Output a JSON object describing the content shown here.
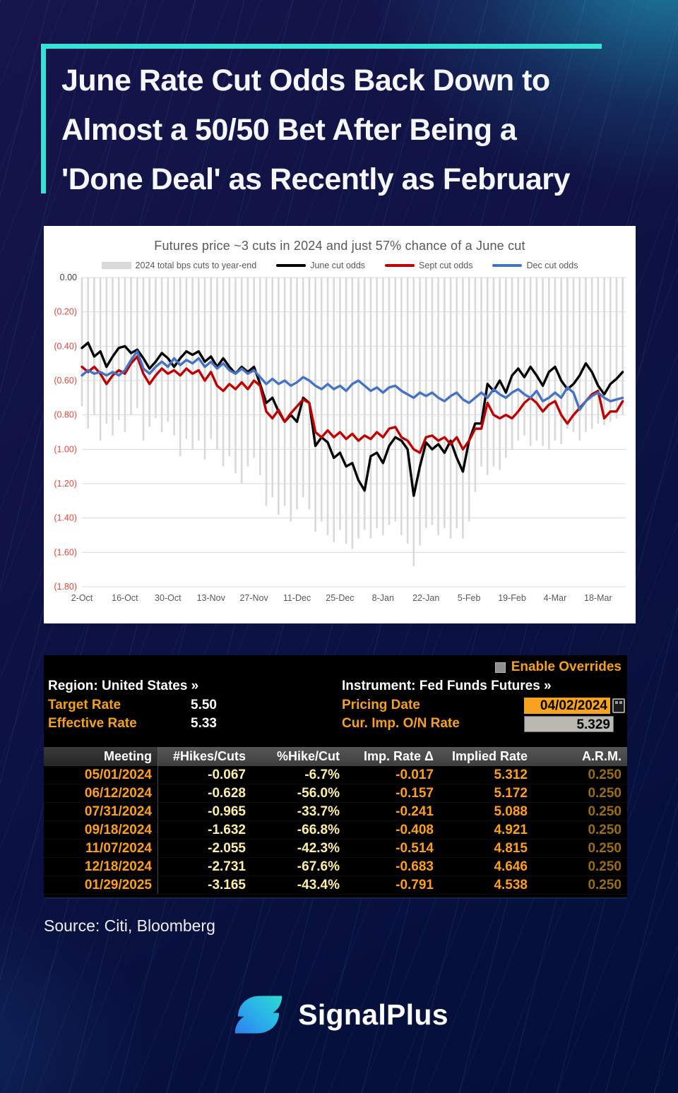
{
  "page": {
    "title_lines": [
      "June Rate Cut Odds Back Down to",
      "Almost a 50/50 Bet After Being a",
      "'Done Deal' as Recently as February"
    ],
    "source": "Source: Citi, Bloomberg",
    "brand": "SignalPlus",
    "accent_teal": "#35e3d4"
  },
  "chart_data": {
    "type": "combo-bar-line",
    "title": "Futures price ~3 cuts in 2024 and just 57% chance of a June cut",
    "xlabel": "",
    "ylabel": "",
    "ylim": [
      -1.8,
      0
    ],
    "grid": "horizontal",
    "legend_position": "top",
    "x_days": [
      0,
      2,
      4,
      6,
      8,
      10,
      12,
      14,
      16,
      18,
      20,
      22,
      24,
      26,
      28,
      30,
      32,
      34,
      36,
      38,
      40,
      42,
      44,
      46,
      48,
      50,
      52,
      54,
      56,
      58,
      60,
      62,
      64,
      66,
      68,
      70,
      72,
      74,
      76,
      78,
      80,
      82,
      84,
      86,
      88,
      90,
      92,
      94,
      96,
      98,
      100,
      102,
      104,
      106,
      108,
      110,
      112,
      114,
      116,
      118,
      120,
      122,
      124,
      126,
      128,
      130,
      132,
      134,
      136,
      138,
      140,
      142,
      144,
      146,
      148,
      150,
      152,
      154,
      156,
      158,
      160,
      162,
      164,
      166,
      168,
      170,
      172,
      174,
      176
    ],
    "x_ticks": {
      "days": [
        0,
        14,
        28,
        42,
        56,
        70,
        84,
        98,
        112,
        126,
        140,
        154,
        168
      ],
      "labels": [
        "2-Oct",
        "16-Oct",
        "30-Oct",
        "13-Nov",
        "27-Nov",
        "11-Dec",
        "25-Dec",
        "8-Jan",
        "22-Jan",
        "5-Feb",
        "19-Feb",
        "4-Mar",
        "18-Mar"
      ]
    },
    "y_ticks": {
      "values": [
        0,
        -0.2,
        -0.4,
        -0.6,
        -0.8,
        -1.0,
        -1.2,
        -1.4,
        -1.6,
        -1.8
      ],
      "labels": [
        "0.00",
        "(0.20)",
        "(0.40)",
        "(0.60)",
        "(0.80)",
        "(1.00)",
        "(1.20)",
        "(1.40)",
        "(1.60)",
        "(1.80)"
      ],
      "negative_color": "#e8443a",
      "zero_color": "#404040"
    },
    "series": [
      {
        "name": "2024 total bps cuts to year-end",
        "type": "bar",
        "color": "#d9d9d9",
        "values": [
          -0.75,
          -0.88,
          -0.8,
          -0.95,
          -0.85,
          -0.92,
          -0.83,
          -0.9,
          -0.8,
          -0.76,
          -0.95,
          -0.87,
          -0.82,
          -0.9,
          -0.84,
          -0.92,
          -1.04,
          -0.94,
          -1.0,
          -0.95,
          -1.06,
          -0.94,
          -1.0,
          -1.1,
          -1.04,
          -1.14,
          -1.2,
          -1.1,
          -1.05,
          -1.15,
          -1.33,
          -1.28,
          -1.38,
          -1.33,
          -1.42,
          -1.35,
          -1.28,
          -1.35,
          -1.48,
          -1.42,
          -1.5,
          -1.54,
          -1.47,
          -1.55,
          -1.58,
          -1.52,
          -1.47,
          -1.52,
          -1.46,
          -1.5,
          -1.44,
          -1.42,
          -1.5,
          -1.55,
          -1.68,
          -1.56,
          -1.46,
          -1.44,
          -1.5,
          -1.46,
          -1.52,
          -1.46,
          -1.52,
          -1.42,
          -1.25,
          -1.1,
          -1.15,
          -1.1,
          -1.12,
          -1.05,
          -1.0,
          -0.95,
          -0.92,
          -0.98,
          -0.95,
          -0.98,
          -1.0,
          -0.95,
          -0.97,
          -0.88,
          -0.9,
          -0.95,
          -0.9,
          -0.88,
          -0.85,
          -0.86,
          -0.84,
          -0.82,
          -0.8
        ]
      },
      {
        "name": "June cut odds",
        "type": "line",
        "color": "#000000",
        "values": [
          -0.41,
          -0.38,
          -0.46,
          -0.43,
          -0.52,
          -0.46,
          -0.41,
          -0.4,
          -0.44,
          -0.42,
          -0.47,
          -0.53,
          -0.49,
          -0.44,
          -0.47,
          -0.52,
          -0.47,
          -0.43,
          -0.45,
          -0.43,
          -0.49,
          -0.46,
          -0.52,
          -0.47,
          -0.52,
          -0.56,
          -0.52,
          -0.55,
          -0.52,
          -0.62,
          -0.73,
          -0.7,
          -0.78,
          -0.84,
          -0.8,
          -0.84,
          -0.7,
          -0.73,
          -0.98,
          -0.93,
          -0.96,
          -1.05,
          -1.02,
          -1.1,
          -1.08,
          -1.18,
          -1.24,
          -1.04,
          -1.02,
          -1.08,
          -0.98,
          -0.93,
          -0.95,
          -1.0,
          -1.27,
          -1.1,
          -0.96,
          -1.0,
          -0.97,
          -1.02,
          -0.95,
          -1.05,
          -1.13,
          -0.95,
          -0.85,
          -0.85,
          -0.62,
          -0.66,
          -0.6,
          -0.67,
          -0.57,
          -0.53,
          -0.58,
          -0.52,
          -0.57,
          -0.63,
          -0.55,
          -0.52,
          -0.6,
          -0.65,
          -0.62,
          -0.57,
          -0.5,
          -0.55,
          -0.63,
          -0.68,
          -0.62,
          -0.59,
          -0.55
        ]
      },
      {
        "name": "Sept cut odds",
        "type": "line",
        "color": "#c00000",
        "values": [
          -0.52,
          -0.55,
          -0.52,
          -0.56,
          -0.62,
          -0.57,
          -0.54,
          -0.56,
          -0.5,
          -0.46,
          -0.56,
          -0.62,
          -0.57,
          -0.53,
          -0.56,
          -0.54,
          -0.57,
          -0.53,
          -0.56,
          -0.54,
          -0.6,
          -0.55,
          -0.63,
          -0.66,
          -0.62,
          -0.65,
          -0.61,
          -0.65,
          -0.6,
          -0.63,
          -0.78,
          -0.82,
          -0.77,
          -0.84,
          -0.79,
          -0.75,
          -0.71,
          -0.73,
          -0.9,
          -0.93,
          -0.89,
          -0.93,
          -0.9,
          -0.94,
          -0.91,
          -0.95,
          -0.92,
          -0.94,
          -0.9,
          -0.93,
          -0.88,
          -0.87,
          -0.93,
          -0.95,
          -1.0,
          -1.02,
          -0.93,
          -0.92,
          -0.95,
          -0.93,
          -0.97,
          -0.93,
          -1.0,
          -0.95,
          -0.88,
          -0.88,
          -0.73,
          -0.8,
          -0.82,
          -0.8,
          -0.82,
          -0.78,
          -0.73,
          -0.7,
          -0.73,
          -0.78,
          -0.74,
          -0.72,
          -0.8,
          -0.85,
          -0.8,
          -0.76,
          -0.72,
          -0.68,
          -0.66,
          -0.82,
          -0.78,
          -0.78,
          -0.72
        ]
      },
      {
        "name": "Dec cut odds",
        "type": "line",
        "color": "#4472c4",
        "values": [
          -0.57,
          -0.54,
          -0.56,
          -0.55,
          -0.57,
          -0.55,
          -0.57,
          -0.54,
          -0.48,
          -0.43,
          -0.53,
          -0.56,
          -0.52,
          -0.49,
          -0.52,
          -0.47,
          -0.51,
          -0.48,
          -0.5,
          -0.47,
          -0.52,
          -0.49,
          -0.53,
          -0.5,
          -0.54,
          -0.56,
          -0.53,
          -0.56,
          -0.54,
          -0.58,
          -0.62,
          -0.59,
          -0.62,
          -0.6,
          -0.63,
          -0.61,
          -0.58,
          -0.6,
          -0.63,
          -0.65,
          -0.62,
          -0.65,
          -0.63,
          -0.66,
          -0.62,
          -0.6,
          -0.63,
          -0.66,
          -0.64,
          -0.67,
          -0.64,
          -0.63,
          -0.66,
          -0.68,
          -0.7,
          -0.67,
          -0.69,
          -0.67,
          -0.7,
          -0.72,
          -0.69,
          -0.67,
          -0.71,
          -0.73,
          -0.7,
          -0.67,
          -0.7,
          -0.65,
          -0.68,
          -0.7,
          -0.67,
          -0.65,
          -0.68,
          -0.7,
          -0.66,
          -0.72,
          -0.7,
          -0.67,
          -0.7,
          -0.64,
          -0.67,
          -0.77,
          -0.72,
          -0.69,
          -0.67,
          -0.7,
          -0.72,
          -0.71,
          -0.7
        ]
      }
    ]
  },
  "terminal": {
    "enable_overrides_label": "Enable Overrides",
    "region_label": "Region: United States »",
    "instrument_label": "Instrument: Fed Funds Futures »",
    "fields": {
      "target_rate": {
        "label": "Target Rate",
        "value": "5.50"
      },
      "effective_rate": {
        "label": "Effective Rate",
        "value": "5.33"
      },
      "pricing_date": {
        "label": "Pricing Date",
        "value": "04/02/2024"
      },
      "cur_imp_on": {
        "label": "Cur. Imp. O/N Rate",
        "value": "5.329"
      }
    },
    "table": {
      "columns": [
        "Meeting",
        "#Hikes/Cuts",
        "%Hike/Cut",
        "Imp. Rate Δ",
        "Implied Rate",
        "A.R.M."
      ],
      "column_colors": [
        "#ff9e1b",
        "#ffefa0",
        "#ffefa0",
        "#ff9e1b",
        "#ff9e1b",
        "#9c6c16"
      ],
      "rows": [
        [
          "05/01/2024",
          "-0.067",
          "-6.7%",
          "-0.017",
          "5.312",
          "0.250"
        ],
        [
          "06/12/2024",
          "-0.628",
          "-56.0%",
          "-0.157",
          "5.172",
          "0.250"
        ],
        [
          "07/31/2024",
          "-0.965",
          "-33.7%",
          "-0.241",
          "5.088",
          "0.250"
        ],
        [
          "09/18/2024",
          "-1.632",
          "-66.8%",
          "-0.408",
          "4.921",
          "0.250"
        ],
        [
          "11/07/2024",
          "-2.055",
          "-42.3%",
          "-0.514",
          "4.815",
          "0.250"
        ],
        [
          "12/18/2024",
          "-2.731",
          "-67.6%",
          "-0.683",
          "4.646",
          "0.250"
        ],
        [
          "01/29/2025",
          "-3.165",
          "-43.4%",
          "-0.791",
          "4.538",
          "0.250"
        ]
      ]
    }
  }
}
